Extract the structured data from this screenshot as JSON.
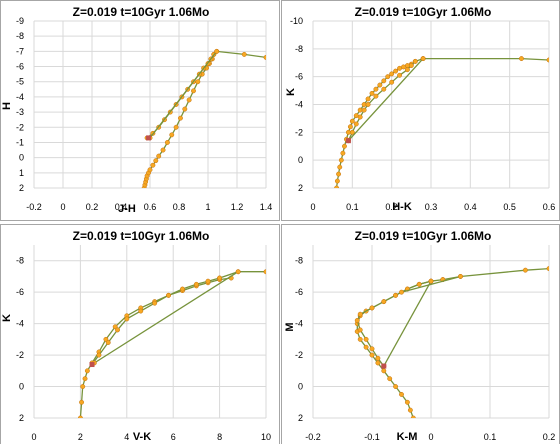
{
  "colors": {
    "line": "#77933c",
    "marker_fill": "#f7a823",
    "marker_edge": "#c07010",
    "rgb_point": "#c0504d",
    "grid": "#d9d9d9",
    "border": "#a6a6a6"
  },
  "chart_data": [
    {
      "type": "line",
      "title": "Z=0.019   t=10Gyr   1.06Mo",
      "xlabel": "J-H",
      "ylabel": "H",
      "xlim": [
        -0.2,
        1.4
      ],
      "ylim": [
        2,
        -9
      ],
      "xticks": [
        "-0.2",
        "0",
        "0.2",
        "0.4",
        "0.6",
        "0.8",
        "1",
        "1.2",
        "1.4"
      ],
      "yticks": [
        "2",
        "1",
        "0",
        "-1",
        "-2",
        "-3",
        "-4",
        "-5",
        "-6",
        "-7",
        "-8",
        "-9"
      ],
      "grid": true,
      "series": [
        {
          "x": [
            0.56,
            0.565,
            0.57,
            0.575,
            0.58,
            0.59,
            0.6,
            0.62,
            0.64,
            0.66,
            0.69,
            0.72,
            0.75,
            0.78,
            0.81,
            0.84,
            0.87,
            0.9,
            0.93,
            0.96,
            0.99,
            1.01,
            1.03
          ],
          "y": [
            2.0,
            1.8,
            1.6,
            1.4,
            1.2,
            1.0,
            0.8,
            0.5,
            0.2,
            -0.1,
            -0.5,
            -1.0,
            -1.5,
            -2.0,
            -2.6,
            -3.2,
            -3.8,
            -4.4,
            -5.0,
            -5.5,
            -5.9,
            -6.2,
            -6.5
          ]
        },
        {
          "x": [
            0.58,
            0.62,
            0.66,
            0.7,
            0.74,
            0.78,
            0.82,
            0.86,
            0.9,
            0.94,
            0.97,
            1.0,
            1.02,
            1.04
          ],
          "y": [
            -1.3,
            -1.6,
            -2.0,
            -2.5,
            -3.0,
            -3.5,
            -4.0,
            -4.5,
            -5.0,
            -5.5,
            -5.9,
            -6.2,
            -6.5,
            -6.8
          ]
        },
        {
          "x": [
            1.04,
            1.06,
            1.25,
            1.4
          ],
          "y": [
            -6.8,
            -7.0,
            -6.8,
            -6.6
          ]
        },
        {
          "x": [
            1.06,
            0.6
          ],
          "y": [
            -7.0,
            -1.3
          ]
        }
      ],
      "rgb_point": {
        "x": 0.59,
        "y": -1.3
      }
    },
    {
      "type": "line",
      "title": "Z=0.019   t=10Gyr   1.06Mo",
      "xlabel": "H-K",
      "ylabel": "K",
      "xlim": [
        0,
        0.6
      ],
      "ylim": [
        2,
        -10
      ],
      "xticks": [
        "0",
        "0.1",
        "0.2",
        "0.3",
        "0.4",
        "0.5",
        "0.6"
      ],
      "yticks": [
        "2",
        "0",
        "-2",
        "-4",
        "-6",
        "-8",
        "-10"
      ],
      "grid": true,
      "series": [
        {
          "x": [
            0.06,
            0.062,
            0.065,
            0.068,
            0.072,
            0.076,
            0.08,
            0.085,
            0.09,
            0.095,
            0.1,
            0.11,
            0.12,
            0.13,
            0.14,
            0.15,
            0.16,
            0.17,
            0.18,
            0.19,
            0.2,
            0.21,
            0.22,
            0.23,
            0.24,
            0.25
          ],
          "y": [
            2.0,
            1.5,
            1.0,
            0.5,
            0.0,
            -0.5,
            -1.0,
            -1.5,
            -2.0,
            -2.4,
            -2.8,
            -3.2,
            -3.6,
            -4.0,
            -4.4,
            -4.8,
            -5.1,
            -5.4,
            -5.7,
            -6.0,
            -6.2,
            -6.4,
            -6.6,
            -6.7,
            -6.8,
            -6.9
          ]
        },
        {
          "x": [
            0.09,
            0.1,
            0.11,
            0.12,
            0.13,
            0.14,
            0.16,
            0.18,
            0.2,
            0.22,
            0.24,
            0.25,
            0.26
          ],
          "y": [
            -1.4,
            -2.0,
            -2.6,
            -3.1,
            -3.6,
            -4.0,
            -4.6,
            -5.1,
            -5.6,
            -6.1,
            -6.5,
            -6.8,
            -7.1
          ]
        },
        {
          "x": [
            0.26,
            0.28,
            0.53,
            0.6
          ],
          "y": [
            -7.1,
            -7.3,
            -7.3,
            -7.2
          ]
        },
        {
          "x": [
            0.28,
            0.09
          ],
          "y": [
            -7.3,
            -1.4
          ]
        }
      ],
      "rgb_point": {
        "x": 0.09,
        "y": -1.4
      }
    },
    {
      "type": "line",
      "title": "Z=0.019   t=10Gyr   1.06Mo",
      "xlabel": "V-K",
      "ylabel": "K",
      "xlim": [
        0,
        10
      ],
      "ylim": [
        2,
        -9
      ],
      "xticks": [
        "0",
        "2",
        "4",
        "6",
        "8",
        "10"
      ],
      "yticks": [
        "2",
        "0",
        "-2",
        "-4",
        "-6",
        "-8"
      ],
      "grid": true,
      "series": [
        {
          "x": [
            2.0,
            2.05,
            2.1,
            2.2,
            2.3,
            2.5,
            2.8,
            3.1,
            3.5,
            4.0,
            4.6,
            5.2,
            5.8,
            6.4,
            7.0,
            7.5,
            8.0,
            8.5
          ],
          "y": [
            2.0,
            1.0,
            0.0,
            -0.5,
            -1.0,
            -1.5,
            -2.2,
            -3.0,
            -3.8,
            -4.5,
            -5.0,
            -5.4,
            -5.8,
            -6.1,
            -6.4,
            -6.6,
            -6.8,
            -6.9
          ]
        },
        {
          "x": [
            2.5,
            2.8,
            3.2,
            3.6,
            4.0,
            4.6,
            5.2,
            5.8,
            6.4,
            7.0,
            7.5,
            8.0
          ],
          "y": [
            -1.4,
            -2.0,
            -2.8,
            -3.6,
            -4.3,
            -4.8,
            -5.3,
            -5.8,
            -6.2,
            -6.5,
            -6.7,
            -6.9
          ]
        },
        {
          "x": [
            8.0,
            8.8,
            10.0
          ],
          "y": [
            -6.9,
            -7.3,
            -7.3
          ]
        },
        {
          "x": [
            8.8,
            2.6
          ],
          "y": [
            -7.3,
            -1.5
          ]
        }
      ],
      "rgb_point": {
        "x": 2.5,
        "y": -1.4
      }
    },
    {
      "type": "line",
      "title": "Z=0.019   t=10Gyr   1.06Mo",
      "xlabel": "K-M",
      "ylabel": "M",
      "xlim": [
        -0.2,
        0.2
      ],
      "ylim": [
        2,
        -9
      ],
      "xticks": [
        "-0.2",
        "-0.1",
        "0",
        "0.1",
        "0.2"
      ],
      "yticks": [
        "2",
        "0",
        "-2",
        "-4",
        "-6",
        "-8"
      ],
      "grid": true,
      "series": [
        {
          "x": [
            -0.03,
            -0.035,
            -0.04,
            -0.05,
            -0.06,
            -0.07,
            -0.08,
            -0.09,
            -0.1,
            -0.11,
            -0.12,
            -0.125,
            -0.125,
            -0.12,
            -0.11,
            -0.1,
            -0.08,
            -0.06,
            -0.04,
            -0.02,
            0.0,
            0.02
          ],
          "y": [
            2.0,
            1.5,
            1.0,
            0.5,
            0.0,
            -0.5,
            -1.0,
            -1.5,
            -2.0,
            -2.5,
            -3.0,
            -3.5,
            -4.0,
            -4.5,
            -4.8,
            -5.0,
            -5.4,
            -5.8,
            -6.2,
            -6.5,
            -6.7,
            -6.8
          ]
        },
        {
          "x": [
            -0.08,
            -0.09,
            -0.1,
            -0.11,
            -0.12,
            -0.125,
            -0.12,
            -0.1,
            -0.08,
            -0.06,
            -0.04,
            -0.02,
            0.0
          ],
          "y": [
            -1.3,
            -1.8,
            -2.4,
            -3.0,
            -3.6,
            -4.2,
            -4.6,
            -5.0,
            -5.4,
            -5.8,
            -6.2,
            -6.5,
            -6.7
          ]
        },
        {
          "x": [
            0.02,
            0.05,
            0.16,
            0.2
          ],
          "y": [
            -6.8,
            -7.0,
            -7.4,
            -7.5
          ]
        },
        {
          "x": [
            0.0,
            -0.08
          ],
          "y": [
            -6.7,
            -1.3
          ]
        },
        {
          "x": [
            0.05,
            -0.05
          ],
          "y": [
            -7.0,
            -6.0
          ]
        }
      ],
      "rgb_point": {
        "x": -0.08,
        "y": -1.3
      }
    }
  ]
}
